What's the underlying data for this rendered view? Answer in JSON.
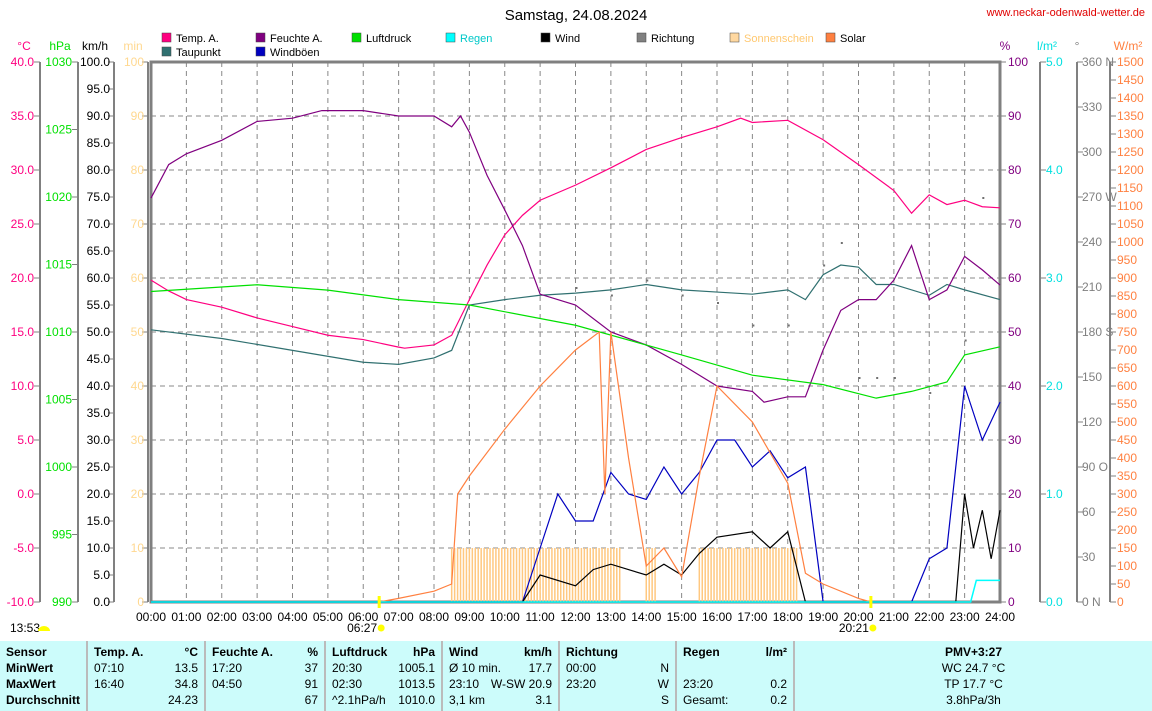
{
  "title": "Samstag, 24.08.2024",
  "site": "www.neckar-odenwald-wetter.de",
  "legend": [
    {
      "label": "Temp. A.",
      "color": "#ff0080"
    },
    {
      "label": "Taupunkt",
      "color": "#307070"
    },
    {
      "label": "Feuchte A.",
      "color": "#800080"
    },
    {
      "label": "Windböen",
      "color": "#0000c0"
    },
    {
      "label": "Luftdruck",
      "color": "#00e000"
    },
    {
      "label": "Regen",
      "color": "#00ffff"
    },
    {
      "label": "Wind",
      "color": "#000000"
    },
    {
      "label": "Richtung",
      "color": "#808080"
    },
    {
      "label": "Sonnenschein",
      "color": "#ffd8a0"
    },
    {
      "label": "Solar",
      "color": "#ff8040"
    }
  ],
  "axes": {
    "temp": {
      "unit": "°C",
      "min": -10,
      "max": 40,
      "step": 5,
      "color": "#ff0080"
    },
    "pressure": {
      "unit": "hPa",
      "min": 990,
      "max": 1030,
      "step": 5,
      "color": "#00e000"
    },
    "wind": {
      "unit": "km/h",
      "min": 0,
      "max": 100,
      "step": 5,
      "color": "#000000"
    },
    "sun": {
      "unit": "min",
      "min": 0,
      "max": 100,
      "step": 10,
      "color": "#ffd890"
    },
    "humidity": {
      "unit": "%",
      "min": 0,
      "max": 100,
      "step": 10,
      "color": "#800080"
    },
    "rain": {
      "unit": "l/m²",
      "min": 0,
      "max": 5,
      "step": 1,
      "color": "#00e0e0"
    },
    "direction": {
      "unit": "°",
      "min": 0,
      "max": 360,
      "step": 30,
      "labels": {
        "0": "0 N",
        "90": "90 O",
        "180": "180 S",
        "270": "270 W",
        "360": "360 N"
      },
      "color": "#808080"
    },
    "solar": {
      "unit": "W/m²",
      "min": 0,
      "max": 1500,
      "step": 50,
      "color": "#ff8040"
    }
  },
  "x_ticks": [
    "00:00",
    "01:00",
    "02:00",
    "03:00",
    "04:00",
    "05:00",
    "06:00",
    "07:00",
    "08:00",
    "09:00",
    "10:00",
    "11:00",
    "12:00",
    "13:00",
    "14:00",
    "15:00",
    "16:00",
    "17:00",
    "18:00",
    "19:00",
    "20:00",
    "21:00",
    "22:00",
    "23:00",
    "24:00"
  ],
  "sunrise": "06:27",
  "sunset": "20:21",
  "daylength": "13:53",
  "chart_data": {
    "type": "line",
    "xlabel": "time (h)",
    "title": "Samstag, 24.08.2024",
    "series": [
      {
        "name": "Temp. A.",
        "axis": "temp",
        "color": "#ff0080",
        "x": [
          0,
          0.5,
          1,
          2,
          3,
          4,
          5,
          6,
          7,
          7.17,
          8,
          8.5,
          9,
          9.5,
          10,
          10.5,
          11,
          12,
          13,
          14,
          15,
          16,
          16.67,
          17,
          18,
          19,
          20,
          21,
          21.5,
          22,
          22.5,
          23,
          23.5,
          24
        ],
        "y": [
          19.8,
          18.8,
          18,
          17.3,
          16.3,
          15.5,
          14.7,
          14.3,
          13.6,
          13.5,
          13.8,
          14.7,
          18,
          21.2,
          24,
          25.8,
          27.2,
          28.6,
          30.2,
          31.9,
          33,
          34,
          34.8,
          34.4,
          34.6,
          32.8,
          30.5,
          28.1,
          26,
          27.7,
          26.8,
          27.2,
          26.6,
          26.5
        ]
      },
      {
        "name": "Taupunkt",
        "axis": "temp",
        "color": "#307070",
        "x": [
          0,
          2,
          4,
          6,
          7,
          8,
          8.5,
          9,
          10,
          11,
          12,
          13,
          14,
          15,
          16,
          17,
          18,
          18.5,
          19,
          19.5,
          20,
          20.5,
          21,
          22,
          22.5,
          23,
          24
        ],
        "y": [
          15.2,
          14.4,
          13.3,
          12.2,
          12,
          12.6,
          13.3,
          17.5,
          18,
          18.4,
          18.6,
          18.9,
          19.4,
          18.9,
          18.7,
          18.5,
          18.9,
          18,
          20.3,
          21.2,
          21,
          19.4,
          19.4,
          18.4,
          19.4,
          18.9,
          18
        ]
      },
      {
        "name": "Feuchte A.",
        "axis": "humidity",
        "color": "#800080",
        "x": [
          0,
          0.5,
          1,
          2,
          3,
          4,
          4.83,
          6,
          7,
          8,
          8.5,
          8.75,
          9,
          9.5,
          10,
          10.5,
          11,
          12,
          13,
          14,
          15,
          16,
          17,
          17.33,
          18,
          18.5,
          19,
          19.5,
          20,
          20.5,
          21,
          21.5,
          22,
          22.5,
          23,
          23.5,
          24
        ],
        "y": [
          74.8,
          81,
          83,
          85.5,
          89,
          89.6,
          91,
          91,
          90,
          90,
          88,
          90,
          87,
          79,
          72.6,
          66,
          57,
          55,
          50,
          47.6,
          44,
          40,
          39,
          37,
          38,
          38,
          46.7,
          54,
          56,
          56,
          59.6,
          66,
          56,
          57.8,
          64,
          61.5,
          58.7
        ]
      },
      {
        "name": "Luftdruck",
        "axis": "pressure",
        "color": "#00e000",
        "x": [
          0,
          3,
          5,
          7,
          9,
          12,
          15,
          17,
          19,
          20.5,
          21.5,
          22.5,
          23,
          24
        ],
        "y": [
          1013,
          1013.5,
          1013.1,
          1012.4,
          1012,
          1010.5,
          1008.3,
          1006.8,
          1006.1,
          1005.1,
          1005.6,
          1006.3,
          1008.3,
          1008.9
        ]
      },
      {
        "name": "Windböen",
        "axis": "wind",
        "color": "#0000c0",
        "x": [
          0,
          10.5,
          11,
          11.5,
          12,
          12.5,
          13,
          13.5,
          14,
          14.5,
          15,
          15.5,
          16,
          16.5,
          17,
          17.5,
          18,
          18.5,
          19,
          21.5,
          22,
          22.5,
          23,
          23.5,
          24
        ],
        "y": [
          0,
          0,
          10,
          20,
          15,
          15,
          24,
          20,
          19,
          25,
          20,
          24,
          30,
          30,
          25,
          28,
          23,
          25,
          0,
          0,
          8,
          10,
          40,
          30,
          37
        ]
      },
      {
        "name": "Wind",
        "axis": "wind",
        "color": "#000000",
        "x": [
          0,
          10.5,
          11,
          12,
          12.5,
          13,
          14,
          14.5,
          15,
          15.5,
          16,
          17,
          17.5,
          18,
          18.5,
          19,
          22.75,
          23,
          23.25,
          23.5,
          23.75,
          24
        ],
        "y": [
          0,
          0,
          5,
          3,
          6,
          7,
          5,
          7,
          5,
          9,
          12,
          13,
          10,
          13,
          0,
          0,
          0,
          20,
          10,
          17,
          8,
          17
        ]
      },
      {
        "name": "Solar",
        "axis": "solar",
        "color": "#ff8040",
        "x": [
          6.45,
          7,
          8,
          8.5,
          8.67,
          9,
          10,
          11,
          12,
          12.67,
          12.83,
          13,
          13.5,
          14,
          14.5,
          15,
          15.5,
          16,
          17,
          18,
          18.5,
          19,
          20,
          20.35
        ],
        "y": [
          0,
          10,
          30,
          50,
          300,
          350,
          480,
          600,
          700,
          750,
          300,
          750,
          400,
          100,
          150,
          70,
          350,
          600,
          500,
          330,
          80,
          50,
          10,
          0
        ]
      },
      {
        "name": "Regen",
        "axis": "rain",
        "color": "#00ffff",
        "x": [
          0,
          23.17,
          23.33,
          24
        ],
        "y": [
          0,
          0,
          0.2,
          0.2
        ]
      }
    ],
    "sunshine": {
      "name": "Sonnenschein",
      "axis": "sun",
      "ranges": [
        [
          8.5,
          13.33,
          10
        ],
        [
          14,
          14.33,
          10
        ],
        [
          15.5,
          18.33,
          10
        ]
      ]
    },
    "direction_points": {
      "name": "Richtung",
      "x": [
        12,
        13,
        14,
        15,
        16,
        17,
        18,
        19,
        19.5,
        20,
        20.5,
        21,
        22,
        23,
        23.5
      ],
      "y": [
        210,
        205,
        215,
        205,
        200,
        185,
        185,
        225,
        240,
        150,
        150,
        150,
        140,
        175,
        270
      ]
    }
  },
  "table": {
    "headers": [
      "Sensor",
      "Temp. A.",
      "°C",
      "Feuchte A.",
      "%",
      "Luftdruck",
      "hPa",
      "Wind",
      "km/h",
      "Richtung",
      "",
      "Regen",
      "l/m²",
      "PMV+3:27"
    ],
    "rows": [
      {
        "label": "MinWert",
        "c": [
          "07:10",
          "13.5",
          "17:20",
          "37",
          "20:30",
          "1005.1",
          "Ø 10 min.",
          "17.7",
          "00:00",
          "N",
          "",
          "",
          "WC 24.7 °C"
        ]
      },
      {
        "label": "MaxWert",
        "c": [
          "16:40",
          "34.8",
          "04:50",
          "91",
          "02:30",
          "1013.5",
          "23:10",
          "W-SW 20.9",
          "23:20",
          "W",
          "23:20",
          "0.2",
          "TP 17.7 °C"
        ]
      },
      {
        "label": "Durchschnitt",
        "c": [
          "",
          "24.23",
          "",
          "67",
          "^2.1hPa/h",
          "1010.0",
          "3,1 km",
          "3.1",
          "",
          "S",
          "Gesamt:",
          "0.2",
          "3.8hPa/3h"
        ]
      }
    ]
  }
}
